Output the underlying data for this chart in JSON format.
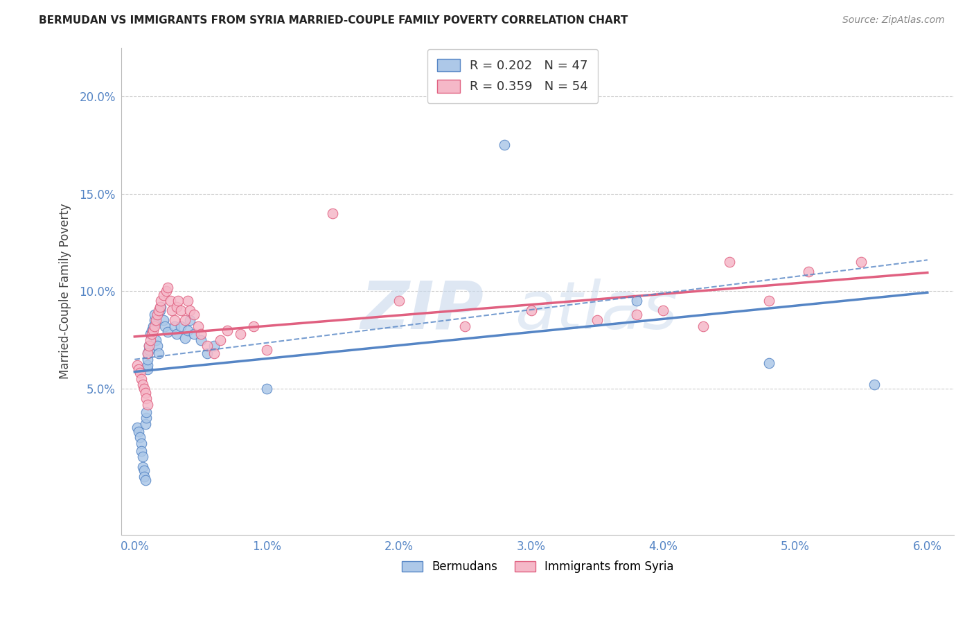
{
  "title": "BERMUDAN VS IMMIGRANTS FROM SYRIA MARRIED-COUPLE FAMILY POVERTY CORRELATION CHART",
  "source": "Source: ZipAtlas.com",
  "ylabel": "Married-Couple Family Poverty",
  "xlim": [
    -0.001,
    0.062
  ],
  "ylim": [
    -0.025,
    0.225
  ],
  "xtick_labels": [
    "0.0%",
    "1.0%",
    "2.0%",
    "3.0%",
    "4.0%",
    "5.0%",
    "6.0%"
  ],
  "xtick_vals": [
    0.0,
    0.01,
    0.02,
    0.03,
    0.04,
    0.05,
    0.06
  ],
  "ytick_labels": [
    "5.0%",
    "10.0%",
    "15.0%",
    "20.0%"
  ],
  "ytick_vals": [
    0.05,
    0.1,
    0.15,
    0.2
  ],
  "label1": "Bermudans",
  "label2": "Immigrants from Syria",
  "color1": "#adc8e8",
  "color2": "#f5b8c8",
  "line_color1": "#5585c5",
  "line_color2": "#e06080",
  "R1": 0.202,
  "N1": 47,
  "R2": 0.359,
  "N2": 54,
  "bermudans_x": [
    0.0002,
    0.0003,
    0.0004,
    0.0005,
    0.0005,
    0.0006,
    0.0006,
    0.0007,
    0.0007,
    0.0008,
    0.0008,
    0.0009,
    0.0009,
    0.001,
    0.001,
    0.001,
    0.001,
    0.0011,
    0.0011,
    0.0012,
    0.0013,
    0.0014,
    0.0015,
    0.0015,
    0.0016,
    0.0017,
    0.0018,
    0.0019,
    0.002,
    0.0022,
    0.0023,
    0.0025,
    0.003,
    0.0032,
    0.0035,
    0.0038,
    0.004,
    0.0042,
    0.0045,
    0.005,
    0.0055,
    0.006,
    0.01,
    0.028,
    0.038,
    0.048,
    0.056
  ],
  "bermudans_y": [
    0.03,
    0.028,
    0.025,
    0.022,
    0.018,
    0.015,
    0.01,
    0.008,
    0.005,
    0.003,
    0.032,
    0.035,
    0.038,
    0.06,
    0.062,
    0.065,
    0.068,
    0.07,
    0.072,
    0.078,
    0.08,
    0.082,
    0.085,
    0.088,
    0.075,
    0.072,
    0.068,
    0.09,
    0.092,
    0.085,
    0.082,
    0.079,
    0.082,
    0.078,
    0.082,
    0.076,
    0.08,
    0.085,
    0.078,
    0.075,
    0.068,
    0.072,
    0.05,
    0.175,
    0.095,
    0.063,
    0.052
  ],
  "syria_x": [
    0.0002,
    0.0003,
    0.0004,
    0.0005,
    0.0006,
    0.0007,
    0.0008,
    0.0009,
    0.001,
    0.001,
    0.0011,
    0.0012,
    0.0013,
    0.0014,
    0.0015,
    0.0016,
    0.0017,
    0.0018,
    0.0019,
    0.002,
    0.0022,
    0.0024,
    0.0025,
    0.0027,
    0.0028,
    0.003,
    0.0032,
    0.0033,
    0.0035,
    0.0038,
    0.004,
    0.0042,
    0.0045,
    0.0048,
    0.005,
    0.0055,
    0.006,
    0.0065,
    0.007,
    0.008,
    0.009,
    0.01,
    0.015,
    0.02,
    0.025,
    0.03,
    0.035,
    0.038,
    0.04,
    0.043,
    0.045,
    0.048,
    0.051,
    0.055
  ],
  "syria_y": [
    0.062,
    0.06,
    0.058,
    0.055,
    0.052,
    0.05,
    0.048,
    0.045,
    0.042,
    0.068,
    0.072,
    0.075,
    0.078,
    0.08,
    0.082,
    0.085,
    0.088,
    0.09,
    0.092,
    0.095,
    0.098,
    0.1,
    0.102,
    0.095,
    0.09,
    0.085,
    0.092,
    0.095,
    0.09,
    0.085,
    0.095,
    0.09,
    0.088,
    0.082,
    0.078,
    0.072,
    0.068,
    0.075,
    0.08,
    0.078,
    0.082,
    0.07,
    0.14,
    0.095,
    0.082,
    0.09,
    0.085,
    0.088,
    0.09,
    0.082,
    0.115,
    0.095,
    0.11,
    0.115
  ]
}
